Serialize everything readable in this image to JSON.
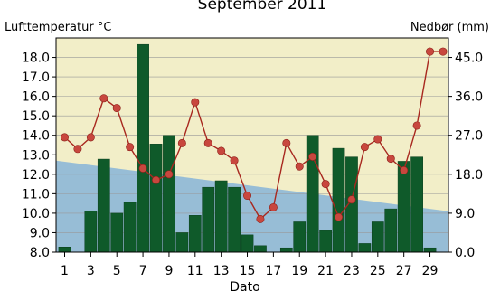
{
  "chart_data": {
    "type": "bar",
    "title": "September 2011",
    "xlabel": "Dato",
    "ylabel_left": "Lufttemperatur °C",
    "ylabel_right": "Nedbør (mm)",
    "ylim_left": [
      8.0,
      19.0
    ],
    "ylim_right": [
      0.0,
      49.5
    ],
    "yticks_left": [
      "8.0",
      "9.0",
      "10.0",
      "11.0",
      "12.0",
      "13.0",
      "14.0",
      "15.0",
      "16.0",
      "17.0",
      "18.0"
    ],
    "yticks_right": [
      "0.0",
      "9.0",
      "18.0",
      "27.0",
      "36.0",
      "45.0"
    ],
    "xticks": [
      "1",
      "3",
      "5",
      "7",
      "9",
      "11",
      "13",
      "15",
      "17",
      "19",
      "21",
      "23",
      "25",
      "27",
      "29"
    ],
    "grid": true,
    "colors": {
      "plot_background": "#f2eec8",
      "normal_area": "#97bdd6",
      "precipitation_bars": "#0f5a2a",
      "temperature_line": "#a8281f",
      "temperature_points": "#c8473e",
      "grid": "#999999"
    },
    "days": [
      1,
      2,
      3,
      4,
      5,
      6,
      7,
      8,
      9,
      10,
      11,
      12,
      13,
      14,
      15,
      16,
      17,
      18,
      19,
      20,
      21,
      22,
      23,
      24,
      25,
      26,
      27,
      28,
      29,
      30
    ],
    "series": [
      {
        "kind": "temperature",
        "axis": "left",
        "values": [
          13.9,
          13.3,
          13.9,
          15.9,
          15.4,
          13.4,
          12.3,
          11.7,
          12.0,
          13.6,
          15.7,
          13.6,
          13.2,
          12.7,
          10.9,
          9.7,
          10.3,
          13.6,
          12.4,
          12.9,
          11.5,
          9.8,
          10.7,
          13.4,
          13.8,
          12.8,
          12.2,
          14.5,
          18.3,
          18.3
        ]
      },
      {
        "kind": "precipitation",
        "axis": "right",
        "values": [
          1.2,
          0.0,
          9.5,
          21.5,
          9.0,
          11.5,
          48.0,
          25.0,
          27.0,
          4.5,
          8.5,
          15.0,
          16.5,
          15.0,
          4.0,
          1.5,
          0.0,
          1.0,
          7.0,
          27.0,
          5.0,
          24.0,
          22.0,
          2.0,
          7.0,
          10.0,
          21.0,
          22.0,
          1.0,
          0.0
        ]
      },
      {
        "kind": "normal",
        "axis": "left",
        "start": 12.7,
        "end": 10.1
      }
    ]
  }
}
